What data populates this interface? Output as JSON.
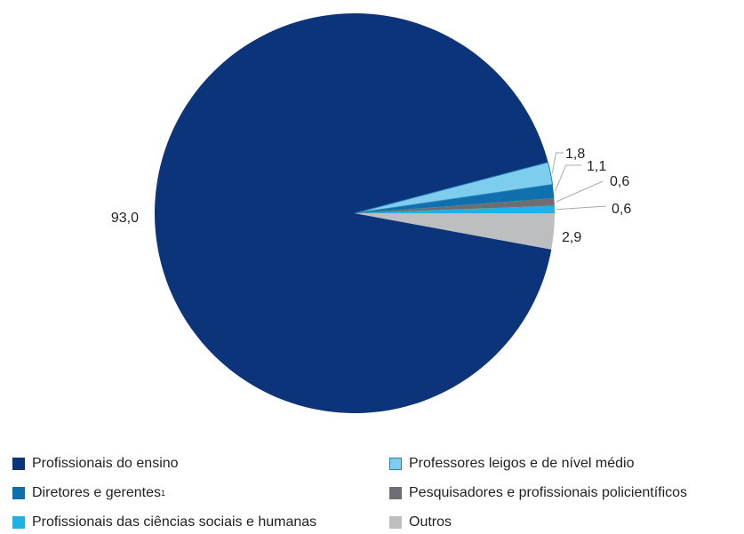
{
  "chart_data": {
    "type": "pie",
    "unit": "%",
    "slices": [
      {
        "name": "Profissionais do ensino",
        "value": 93.0,
        "label": "93,0",
        "color": "#0b347a"
      },
      {
        "name": "Professores leigos e de nível médio",
        "value": 1.8,
        "label": "1,8",
        "color": "#7ecdef"
      },
      {
        "name": "Diretores e gerentes",
        "footnote": "1",
        "value": 1.1,
        "label": "1,1",
        "color": "#0f70ad"
      },
      {
        "name": "Pesquisadores e profissionais policientíficos",
        "value": 0.6,
        "label": "0,6",
        "color": "#6d6e71"
      },
      {
        "name": "Profissionais das ciências sociais e humanas",
        "value": 0.6,
        "label": "0,6",
        "color": "#1fb1e3"
      },
      {
        "name": "Outros",
        "value": 2.9,
        "label": "2,9",
        "color": "#bcbec0"
      }
    ],
    "legend": {
      "placement": "bottom",
      "items": [
        {
          "text": "Profissionais do ensino",
          "color": "#0b347a"
        },
        {
          "text": "Professores leigos e de nível médio",
          "color": "#7ecdef"
        },
        {
          "text": "Diretores e gerentes",
          "sup": "1",
          "color": "#0f70ad"
        },
        {
          "text": "Pesquisadores e profissionais policientíficos",
          "color": "#6d6e71"
        },
        {
          "text": "Profissionais das ciências sociais e humanas",
          "color": "#1fb1e3"
        },
        {
          "text": "Outros",
          "color": "#bcbec0"
        }
      ]
    }
  }
}
